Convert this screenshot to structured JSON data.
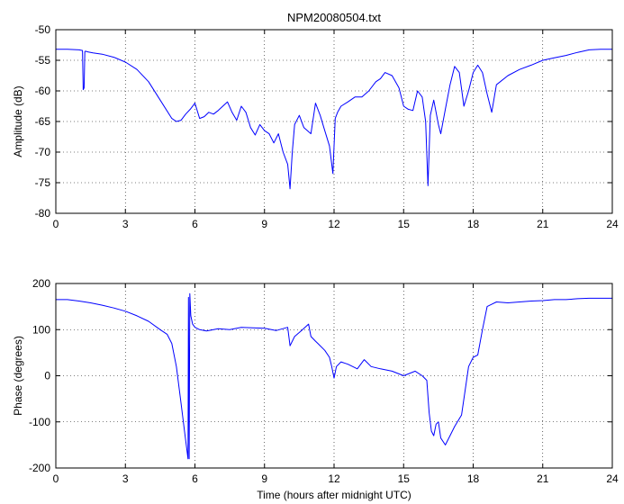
{
  "chart_data": [
    {
      "type": "line",
      "title": "NPM20080504.txt",
      "xlabel": "",
      "ylabel": "Amplitude (dB)",
      "xlim": [
        0,
        24
      ],
      "ylim": [
        -80,
        -50
      ],
      "xticks": [
        0,
        3,
        6,
        9,
        12,
        15,
        18,
        21,
        24
      ],
      "yticks": [
        -80,
        -75,
        -70,
        -65,
        -60,
        -55,
        -50
      ],
      "grid": true,
      "color": "#0000ff",
      "series": [
        {
          "x": [
            0,
            0.5,
            1.0,
            1.15,
            1.18,
            1.22,
            1.25,
            1.28,
            1.35,
            1.6,
            2.0,
            2.5,
            3.0,
            3.5,
            4.0,
            4.5,
            5.0,
            5.2,
            5.4,
            5.6,
            5.8,
            6.0,
            6.2,
            6.4,
            6.6,
            6.8,
            7.0,
            7.2,
            7.4,
            7.6,
            7.8,
            8.0,
            8.2,
            8.4,
            8.6,
            8.8,
            9.0,
            9.2,
            9.4,
            9.6,
            9.8,
            10.0,
            10.1,
            10.2,
            10.3,
            10.5,
            10.7,
            11.0,
            11.2,
            11.4,
            11.6,
            11.8,
            11.95,
            12.05,
            12.15,
            12.3,
            12.6,
            12.9,
            13.2,
            13.5,
            13.8,
            14.0,
            14.2,
            14.5,
            14.8,
            15.0,
            15.2,
            15.4,
            15.6,
            15.8,
            15.95,
            16.05,
            16.15,
            16.3,
            16.5,
            16.6,
            16.8,
            17.0,
            17.2,
            17.4,
            17.6,
            17.8,
            18.0,
            18.2,
            18.4,
            18.6,
            18.8,
            19.0,
            19.5,
            20.0,
            20.5,
            21.0,
            21.5,
            22.0,
            22.5,
            23.0,
            23.5,
            24.0
          ],
          "y": [
            -53.2,
            -53.2,
            -53.3,
            -53.4,
            -59.8,
            -59.5,
            -53.6,
            -53.5,
            -53.6,
            -53.8,
            -54.0,
            -54.5,
            -55.3,
            -56.5,
            -58.5,
            -61.5,
            -64.5,
            -65.0,
            -64.8,
            -63.8,
            -63.0,
            -62.0,
            -64.5,
            -64.2,
            -63.5,
            -63.8,
            -63.2,
            -62.5,
            -61.8,
            -63.5,
            -64.8,
            -62.5,
            -63.5,
            -66.0,
            -67.2,
            -65.5,
            -66.5,
            -67.0,
            -68.5,
            -67.0,
            -70.0,
            -72.0,
            -76.0,
            -70.0,
            -65.5,
            -64.0,
            -66.0,
            -67.0,
            -62.0,
            -64.0,
            -66.5,
            -69.0,
            -73.5,
            -64.5,
            -63.5,
            -62.5,
            -61.8,
            -61.0,
            -61.0,
            -60.0,
            -58.5,
            -58.0,
            -57.0,
            -57.5,
            -59.5,
            -62.5,
            -63.0,
            -63.2,
            -60.0,
            -61.0,
            -65.0,
            -75.5,
            -64.0,
            -61.5,
            -65.5,
            -67.0,
            -63.0,
            -59.0,
            -56.0,
            -57.0,
            -62.5,
            -60.0,
            -57.0,
            -55.8,
            -57.0,
            -60.5,
            -63.5,
            -59.0,
            -57.5,
            -56.5,
            -55.8,
            -55.0,
            -54.6,
            -54.2,
            -53.7,
            -53.3,
            -53.2,
            -53.2
          ]
        }
      ]
    },
    {
      "type": "line",
      "title": "",
      "xlabel": "Time (hours after midnight UTC)",
      "ylabel": "Phase (degrees)",
      "xlim": [
        0,
        24
      ],
      "ylim": [
        -200,
        200
      ],
      "xticks": [
        0,
        3,
        6,
        9,
        12,
        15,
        18,
        21,
        24
      ],
      "yticks": [
        -200,
        -100,
        0,
        100,
        200
      ],
      "grid": true,
      "color": "#0000ff",
      "series": [
        {
          "x": [
            0,
            0.5,
            1.0,
            1.5,
            2.0,
            2.5,
            3.0,
            3.5,
            4.0,
            4.5,
            4.8,
            5.0,
            5.2,
            5.4,
            5.55,
            5.7,
            5.72,
            5.75,
            5.78,
            5.82,
            5.9,
            6.0,
            6.2,
            6.5,
            7.0,
            7.5,
            8.0,
            8.5,
            9.0,
            9.5,
            10.0,
            10.1,
            10.3,
            10.6,
            10.9,
            11.0,
            11.2,
            11.3,
            11.6,
            11.8,
            11.9,
            12.0,
            12.1,
            12.3,
            12.6,
            13.0,
            13.3,
            13.6,
            14.0,
            14.5,
            15.0,
            15.5,
            15.8,
            16.0,
            16.1,
            16.2,
            16.3,
            16.4,
            16.5,
            16.6,
            16.8,
            17.0,
            17.2,
            17.5,
            17.8,
            18.0,
            18.2,
            18.4,
            18.6,
            18.8,
            19.0,
            19.5,
            20.0,
            20.5,
            21.0,
            21.5,
            22.0,
            22.5,
            23.0,
            23.5,
            24.0
          ],
          "y": [
            165,
            165,
            162,
            158,
            153,
            147,
            140,
            130,
            118,
            100,
            90,
            70,
            20,
            -60,
            -120,
            -180,
            170,
            -180,
            178,
            130,
            112,
            105,
            100,
            97,
            102,
            100,
            105,
            104,
            103,
            98,
            105,
            65,
            85,
            98,
            112,
            85,
            75,
            70,
            55,
            40,
            20,
            -5,
            20,
            30,
            25,
            15,
            35,
            20,
            15,
            10,
            0,
            10,
            0,
            -10,
            -80,
            -120,
            -130,
            -105,
            -100,
            -135,
            -150,
            -130,
            -110,
            -85,
            20,
            40,
            45,
            100,
            150,
            155,
            160,
            158,
            160,
            162,
            163,
            165,
            165,
            167,
            168,
            168,
            168
          ]
        }
      ]
    }
  ]
}
